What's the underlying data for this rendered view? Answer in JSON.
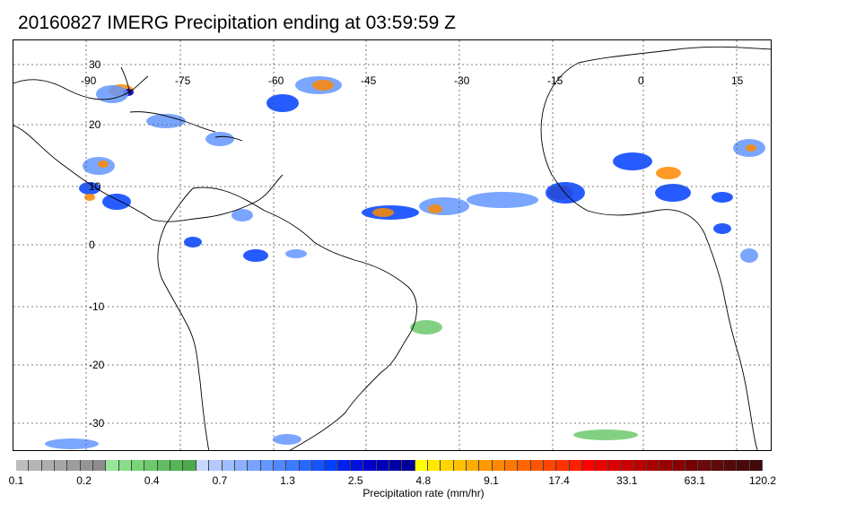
{
  "title": "20160827 IMERG Precipitation ending at 03:59:59 Z",
  "map": {
    "lon_labels": [
      "-90",
      "-75",
      "-60",
      "-45",
      "-30",
      "-15",
      "0",
      "15"
    ],
    "lat_labels": [
      "30",
      "20",
      "10",
      "0",
      "-10",
      "-20",
      "-30"
    ],
    "grid": true
  },
  "colorbar": {
    "label": "Precipitation rate (mm/hr)",
    "tick_labels": [
      "0.1",
      "0.2",
      "0.4",
      "0.7",
      "1.3",
      "2.5",
      "4.8",
      "9.1",
      "17.4",
      "33.1",
      "63.1",
      "120.2"
    ],
    "colors": [
      "#bdbdbd",
      "#b5b5b5",
      "#adadad",
      "#a5a5a5",
      "#9d9d9d",
      "#959595",
      "#8d8d8d",
      "#98e698",
      "#88dd88",
      "#78d478",
      "#6cc96c",
      "#60be60",
      "#56b456",
      "#4caa4c",
      "#c8d8ff",
      "#b4caff",
      "#a0bdff",
      "#8cb0ff",
      "#78a3ff",
      "#6496ff",
      "#5089ff",
      "#3c7cff",
      "#2868ff",
      "#1454ff",
      "#0040ff",
      "#0020ee",
      "#0010dd",
      "#0000cc",
      "#0000b8",
      "#0000a8",
      "#000098",
      "#ffff00",
      "#ffe800",
      "#ffd400",
      "#ffc000",
      "#ffac00",
      "#ff9a00",
      "#ff8800",
      "#ff7700",
      "#ff6600",
      "#ff5500",
      "#ff4400",
      "#ff3300",
      "#ff2000",
      "#ff0000",
      "#ee0000",
      "#dd0000",
      "#cc0000",
      "#bb0000",
      "#aa0000",
      "#990000",
      "#880000",
      "#770000",
      "#6a0a0a",
      "#5f0a0a",
      "#550a0a",
      "#4a0a0a",
      "#400a0a"
    ]
  }
}
